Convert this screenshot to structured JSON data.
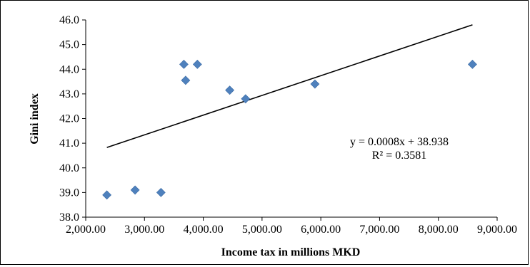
{
  "chart_data": {
    "type": "scatter",
    "title": "",
    "xlabel": "Income tax in millions MKD",
    "ylabel": "Gini index",
    "xlim": [
      2000,
      9000
    ],
    "ylim": [
      38.0,
      46.0
    ],
    "x_ticks": [
      2000,
      3000,
      4000,
      5000,
      6000,
      7000,
      8000,
      9000
    ],
    "x_tick_labels": [
      "2,000.00",
      "3,000.00",
      "4,000.00",
      "5,000.00",
      "6,000.00",
      "7,000.00",
      "8,000.00",
      "9,000.00"
    ],
    "y_ticks": [
      38,
      39,
      40,
      41,
      42,
      43,
      44,
      45,
      46
    ],
    "y_tick_labels": [
      "38.0",
      "39.0",
      "40.0",
      "41.0",
      "42.0",
      "43.0",
      "44.0",
      "45.0",
      "46.0"
    ],
    "grid": false,
    "legend": "none",
    "marker_color": "#4F81BD",
    "marker_shape": "diamond",
    "series": [
      {
        "points": [
          {
            "x": 2360,
            "y": 38.9
          },
          {
            "x": 2840,
            "y": 39.1
          },
          {
            "x": 3280,
            "y": 39.0
          },
          {
            "x": 3670,
            "y": 44.2
          },
          {
            "x": 3700,
            "y": 43.55
          },
          {
            "x": 3900,
            "y": 44.2
          },
          {
            "x": 4450,
            "y": 43.15
          },
          {
            "x": 4720,
            "y": 42.8
          },
          {
            "x": 5900,
            "y": 43.4
          },
          {
            "x": 8580,
            "y": 44.2
          }
        ]
      }
    ],
    "trendline": {
      "type": "linear",
      "slope": 0.0008,
      "intercept": 38.938,
      "x_range": [
        2360,
        8580
      ],
      "color": "#000000"
    },
    "annotations": {
      "equation": "y = 0.0008x + 38.938",
      "r_squared": "R² = 0.3581"
    }
  }
}
